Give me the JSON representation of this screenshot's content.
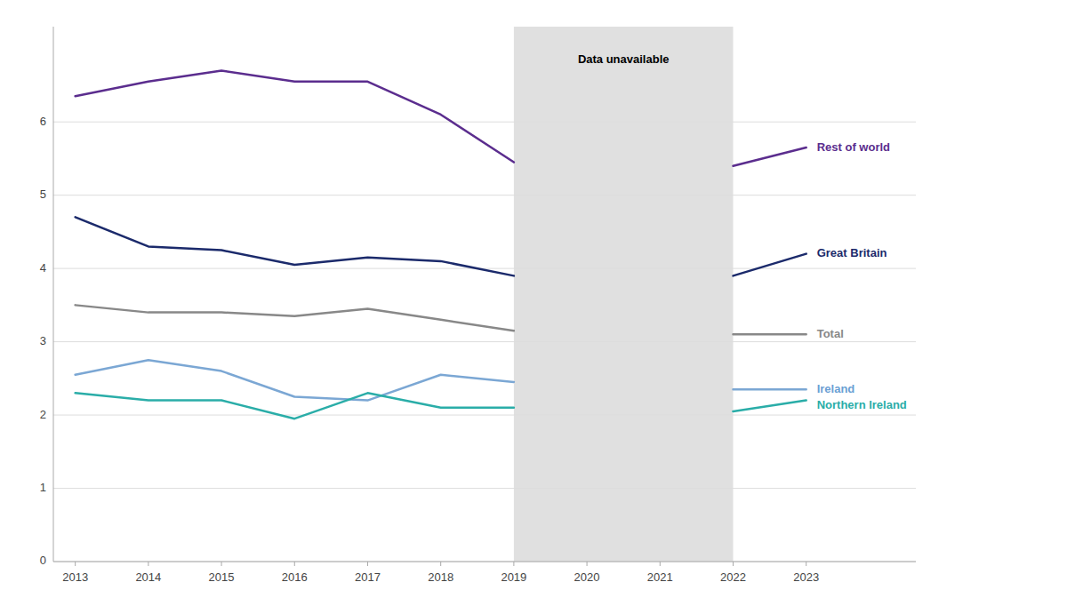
{
  "chart_data": {
    "type": "line",
    "x": [
      2013,
      2014,
      2015,
      2016,
      2017,
      2018,
      2019,
      2020,
      2021,
      2022,
      2023
    ],
    "series": [
      {
        "name": "Rest of world",
        "color": "#5B2D8E",
        "label_color": "#5B2D8E",
        "values": [
          6.35,
          6.55,
          6.7,
          6.55,
          6.55,
          6.1,
          5.45,
          null,
          null,
          5.4,
          5.65
        ]
      },
      {
        "name": "Great Britain",
        "color": "#1B2A6B",
        "label_color": "#1B2A6B",
        "values": [
          4.7,
          4.3,
          4.25,
          4.05,
          4.15,
          4.1,
          3.9,
          null,
          null,
          3.9,
          4.2
        ]
      },
      {
        "name": "Total",
        "color": "#888888",
        "label_color": "#888888",
        "values": [
          3.5,
          3.4,
          3.4,
          3.35,
          3.45,
          3.3,
          3.15,
          null,
          null,
          3.1,
          3.1
        ]
      },
      {
        "name": "Ireland",
        "color": "#7BA7D4",
        "label_color": "#6B9FD4",
        "values": [
          2.55,
          2.75,
          2.6,
          2.25,
          2.2,
          2.55,
          2.45,
          null,
          null,
          2.35,
          2.35
        ]
      },
      {
        "name": "Northern Ireland",
        "color": "#2AADA8",
        "label_color": "#2AADA8",
        "values": [
          2.3,
          2.2,
          2.2,
          1.95,
          2.3,
          2.1,
          2.1,
          null,
          null,
          2.05,
          2.2
        ]
      }
    ],
    "spans": [
      {
        "x0": 2019,
        "x1": 2022,
        "color": "#E0E0E0"
      }
    ],
    "annotations": [
      {
        "text": "Data unavailable",
        "x": 2020.5,
        "y": 6.92
      }
    ],
    "xlim": [
      2012.7,
      2024.5
    ],
    "ylim": [
      0,
      7.3
    ],
    "xticks": [
      2013,
      2014,
      2015,
      2016,
      2017,
      2018,
      2019,
      2020,
      2021,
      2022,
      2023
    ],
    "yticks": [
      0,
      1,
      2,
      3,
      4,
      5,
      6
    ],
    "grid": true
  }
}
